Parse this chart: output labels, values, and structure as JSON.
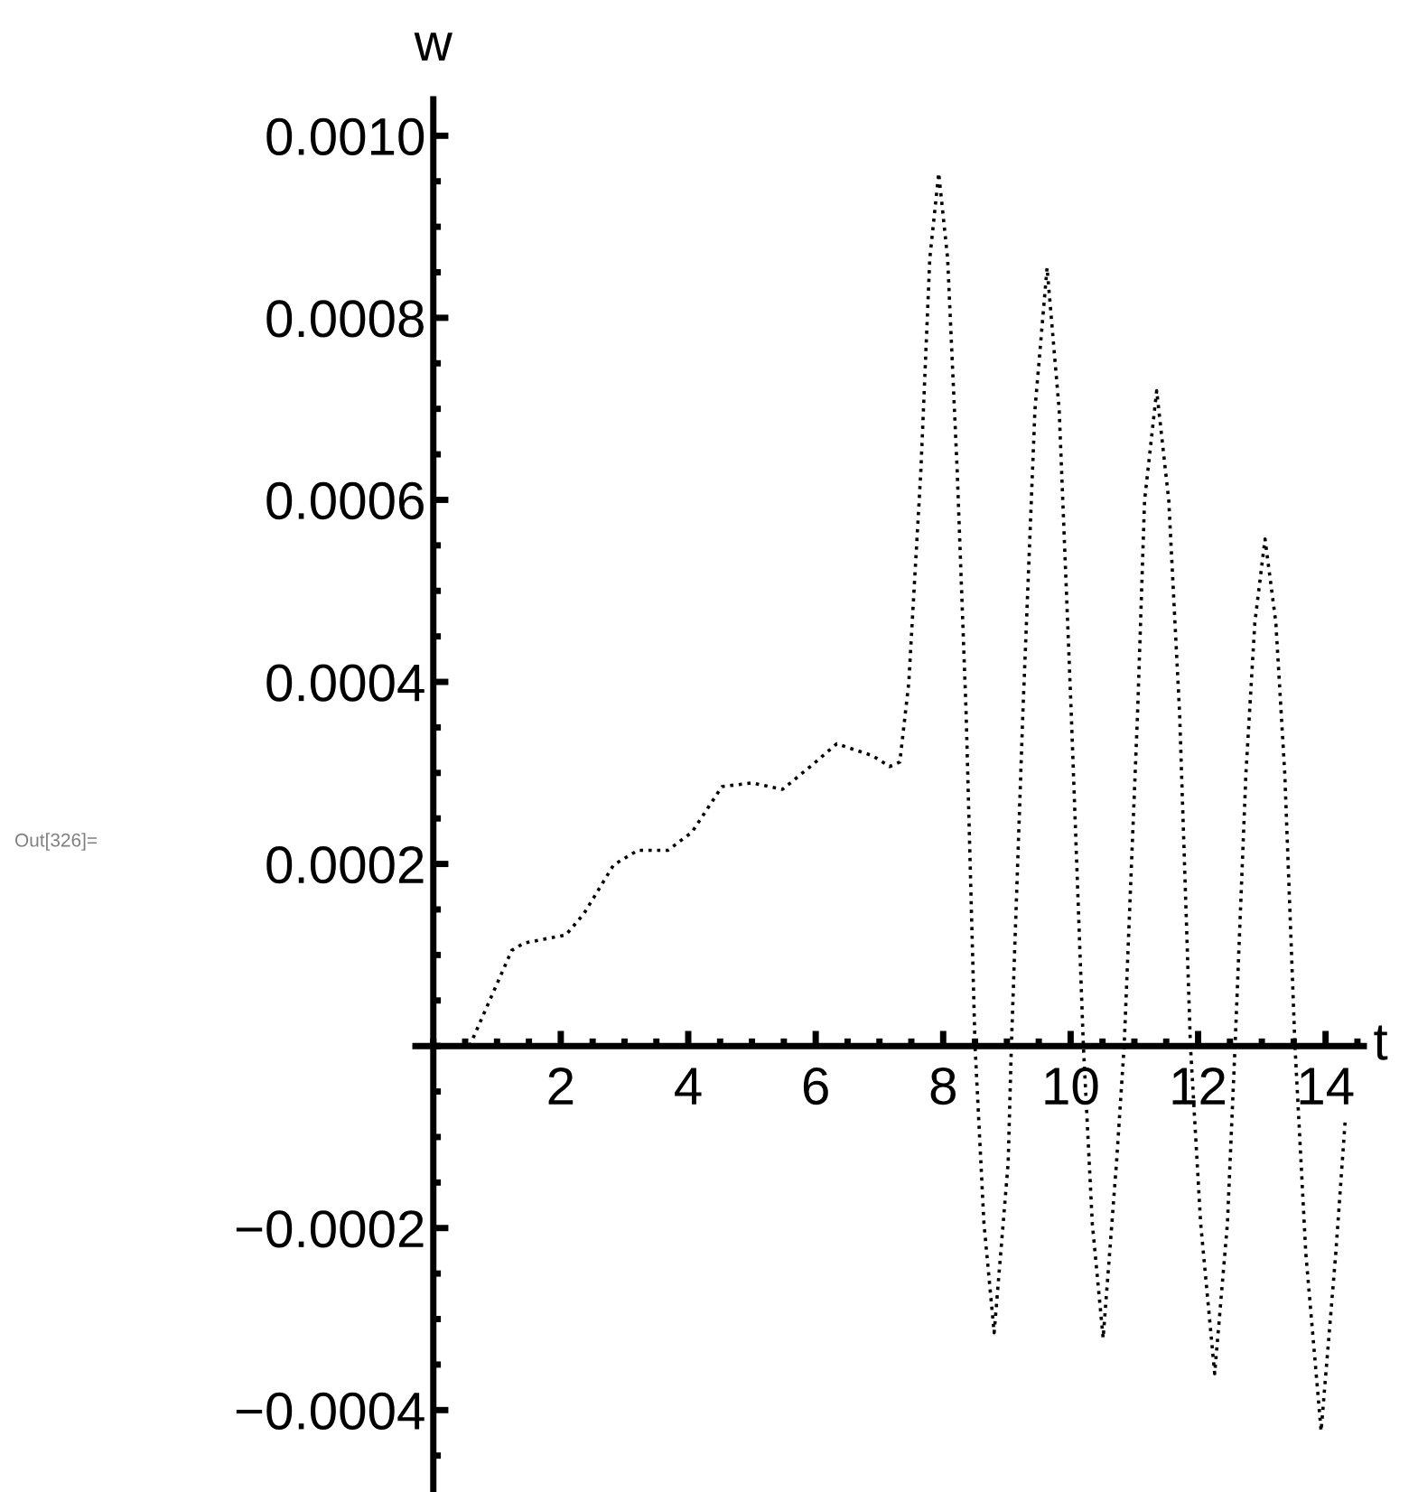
{
  "chart_data": {
    "type": "line",
    "xlabel": "t",
    "ylabel": "w",
    "annotations": [
      "Out[326]="
    ],
    "x": [
      0.3,
      0.57,
      1.23,
      1.42,
      2.08,
      2.36,
      2.83,
      3.21,
      3.68,
      4.06,
      4.53,
      5.0,
      5.48,
      5.95,
      6.33,
      6.89,
      7.16,
      7.32,
      7.46,
      7.65,
      7.79,
      7.93,
      8.07,
      8.22,
      8.36,
      8.5,
      8.64,
      8.8,
      9.02,
      9.07,
      9.25,
      9.44,
      9.63,
      9.82,
      10.01,
      10.2,
      10.34,
      10.51,
      10.72,
      10.84,
      11.05,
      11.16,
      11.35,
      11.54,
      11.71,
      11.88,
      12.04,
      12.26,
      12.46,
      12.58,
      12.75,
      12.89,
      13.05,
      13.22,
      13.36,
      13.52,
      13.69,
      13.93,
      14.16,
      14.31
    ],
    "series": [
      {
        "color": "#000000",
        "values": [
          0,
          0,
          0.000105,
          0.000113,
          0.000122,
          0.000145,
          0.000199,
          0.000215,
          0.000215,
          0.000235,
          0.000285,
          0.000289,
          0.000282,
          0.000309,
          0.000332,
          0.000319,
          0.000307,
          0.000312,
          0.000399,
          0.000632,
          0.000865,
          0.000959,
          0.000865,
          0.000632,
          0.000366,
          0,
          -0.000195,
          -0.000315,
          -0.000128,
          0,
          0.000365,
          0.000699,
          0.000855,
          0.000699,
          0.000365,
          0,
          -0.000195,
          -0.000321,
          -0.000128,
          0,
          0.000365,
          0.000599,
          0.00072,
          0.000599,
          0.000365,
          0,
          -0.000195,
          -0.00036,
          -0.000195,
          0,
          0.000299,
          0.000465,
          0.000557,
          0.000465,
          0.000299,
          0,
          -0.000228,
          -0.000423,
          -0.000228,
          -8e-05
        ]
      }
    ],
    "xlim": [
      -0.28,
      14.6
    ],
    "ylim": [
      -0.00049,
      0.00104
    ],
    "xticks": [
      2,
      4,
      6,
      8,
      10,
      12,
      14
    ],
    "yticks": [
      {
        "value": -0.0004,
        "label": "−0.0004"
      },
      {
        "value": -0.0002,
        "label": "−0.0002"
      },
      {
        "value": 0.0002,
        "label": "0.0002"
      },
      {
        "value": 0.0004,
        "label": "0.0004"
      },
      {
        "value": 0.0006,
        "label": "0.0006"
      },
      {
        "value": 0.0008,
        "label": "0.0008"
      },
      {
        "value": 0.001,
        "label": "0.0010"
      }
    ],
    "grid": false,
    "marker": "none",
    "line_style": "dotted"
  }
}
